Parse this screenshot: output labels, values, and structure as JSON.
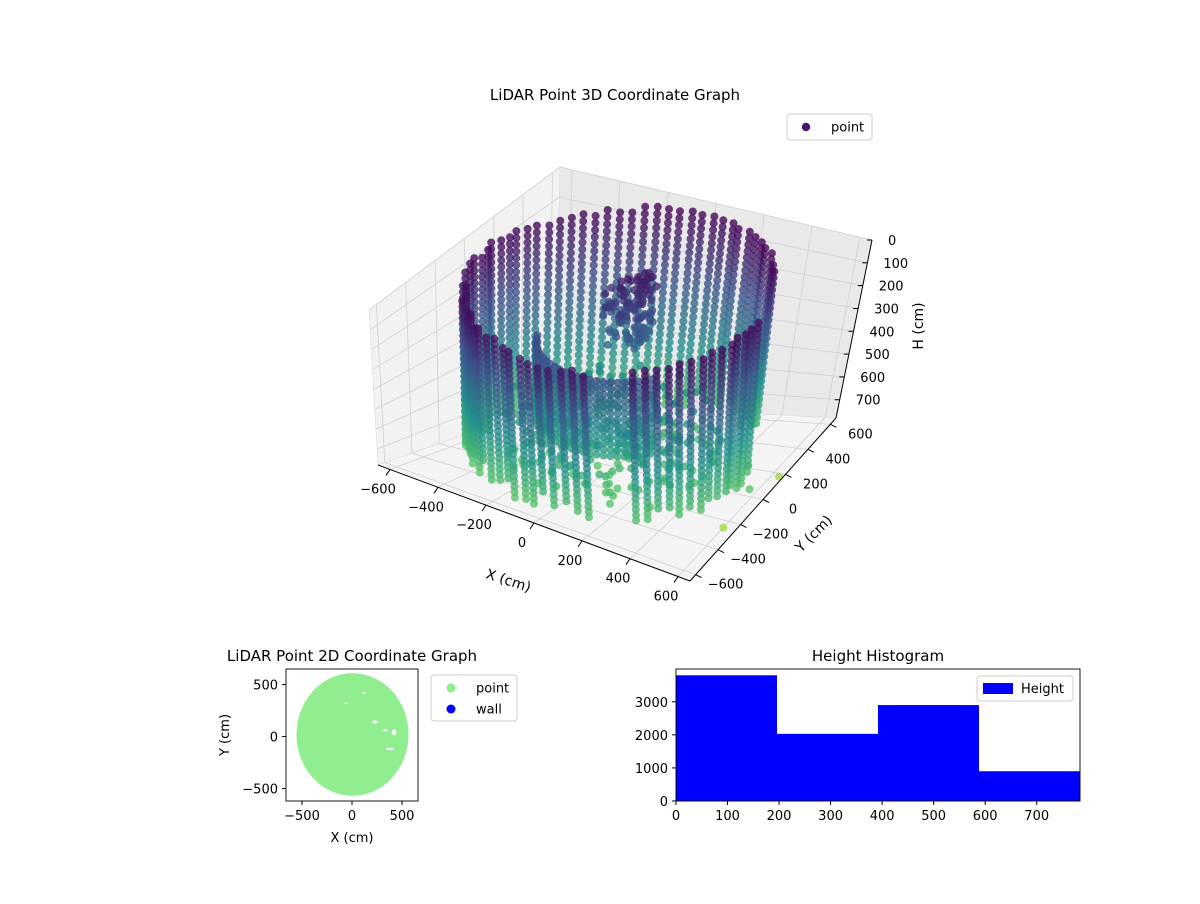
{
  "chart_data": [
    {
      "type": "scatter3d",
      "title": "LiDAR Point 3D Coordinate Graph",
      "xlabel": "X (cm)",
      "ylabel": "Y (cm)",
      "zlabel": "H (cm)",
      "x_ticks": [
        "−600",
        "−400",
        "−200",
        "0",
        "200",
        "400",
        "600"
      ],
      "y_ticks": [
        "−600",
        "−400",
        "−200",
        "0",
        "200",
        "400",
        "600"
      ],
      "z_ticks": [
        "0",
        "100",
        "200",
        "300",
        "400",
        "500",
        "600",
        "700"
      ],
      "xlim": [
        -650,
        650
      ],
      "ylim": [
        -650,
        650
      ],
      "zlim": [
        0,
        780
      ],
      "z_inverted": true,
      "legend": {
        "placement": "top-right",
        "entries": [
          {
            "label": "point",
            "color": "#46176b"
          }
        ]
      },
      "grid": true,
      "colormap": [
        "#440154",
        "#3b528b",
        "#21918c",
        "#5ec962",
        "#a0da39"
      ],
      "room": {
        "radius_cm": 560,
        "max_height_cm": 780
      }
    },
    {
      "type": "scatter",
      "title": "LiDAR Point 2D Coordinate Graph",
      "xlabel": "X (cm)",
      "ylabel": "Y (cm)",
      "x_ticks": [
        "−500",
        "0",
        "500"
      ],
      "y_ticks": [
        "−500",
        "0",
        "500"
      ],
      "xlim": [
        -660,
        660
      ],
      "ylim": [
        -620,
        650
      ],
      "series": [
        {
          "name": "point",
          "color": "#90ee90"
        },
        {
          "name": "wall",
          "color": "#0000ff"
        }
      ],
      "legend": {
        "placement": "outside-right"
      },
      "grid": false
    },
    {
      "type": "bar",
      "title": "Height Histogram",
      "xlabel": "",
      "ylabel": "",
      "bins": [
        {
          "x0": 0,
          "x1": 196,
          "count": 3800
        },
        {
          "x0": 196,
          "x1": 392,
          "count": 2030
        },
        {
          "x0": 392,
          "x1": 588,
          "count": 2900
        },
        {
          "x0": 588,
          "x1": 784,
          "count": 900
        }
      ],
      "x_ticks": [
        "0",
        "100",
        "200",
        "300",
        "400",
        "500",
        "600",
        "700"
      ],
      "y_ticks": [
        "0",
        "1000",
        "2000",
        "3000"
      ],
      "xlim": [
        0,
        784
      ],
      "ylim": [
        0,
        3990
      ],
      "series": [
        {
          "name": "Height",
          "color": "#0000ff"
        }
      ],
      "legend": {
        "placement": "top-right"
      },
      "grid": false
    }
  ]
}
